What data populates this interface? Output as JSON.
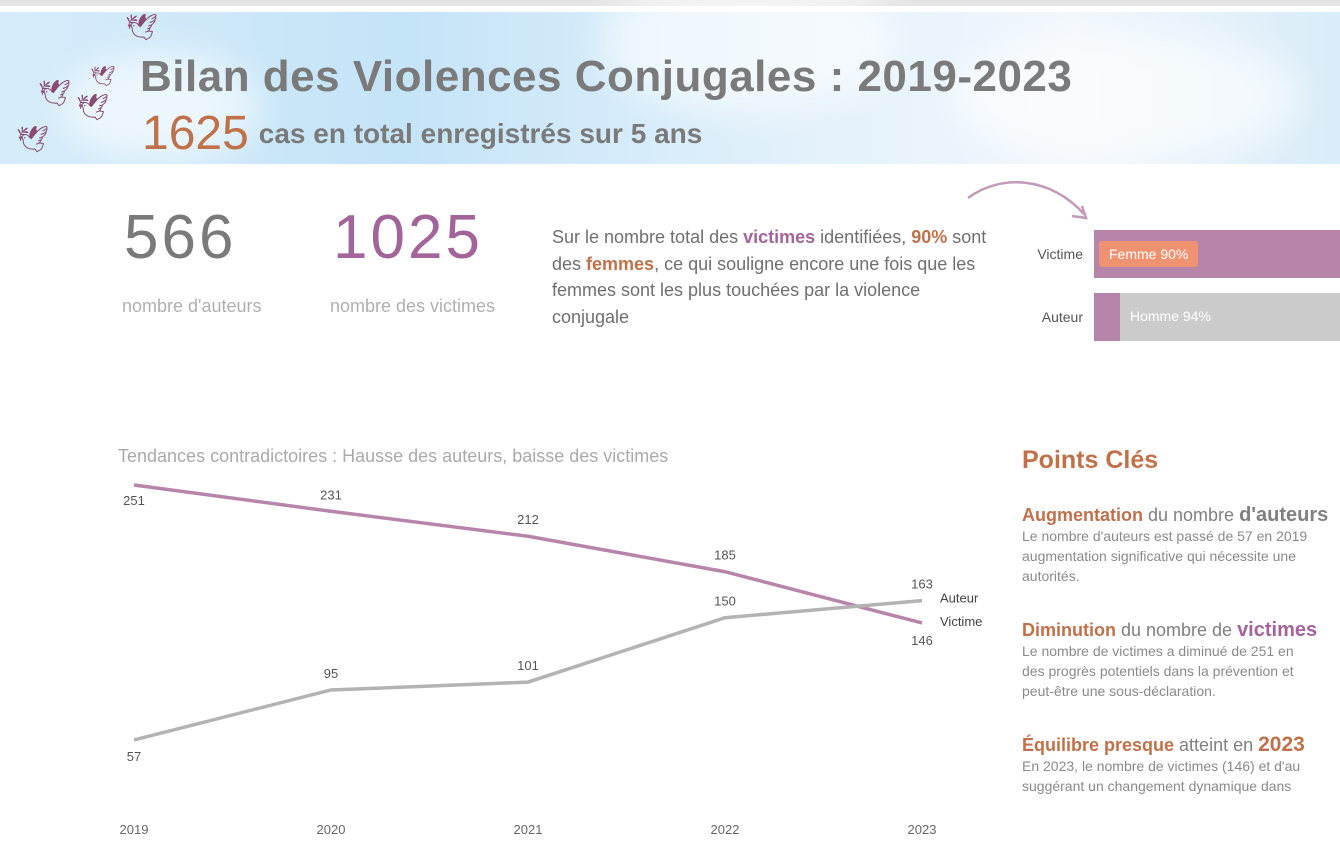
{
  "header": {
    "title": "Bilan des Violences Conjugales : 2019-2023",
    "total": "1625",
    "total_text": "cas en total enregistrés sur 5 ans"
  },
  "kpis": [
    {
      "value": "566",
      "label": "nombre d'auteurs",
      "color": "#7a7a7a"
    },
    {
      "value": "1025",
      "label": "nombre des victimes",
      "color": "#a2649a"
    }
  ],
  "summary": {
    "p1": "Sur le nombre total des ",
    "victimes": "victimes",
    "p2": " identifiées, ",
    "pct": "90%",
    "p3": " sont des ",
    "femmes": "femmes",
    "p4": ", ce qui souligne encore une fois que les femmes sont les plus touchées par la violence conjugale"
  },
  "gender_bars": [
    {
      "label": "Victime",
      "segment_label": "Femme 90%",
      "female_pct": 90
    },
    {
      "label": "Auteur",
      "segment_label": "Homme 94%",
      "male_pct": 94
    }
  ],
  "colors": {
    "victime": "#b885aa",
    "auteur": "#b3b3b3",
    "accent": "#c0714a",
    "badge": "#ef9272"
  },
  "chart_data": {
    "type": "line",
    "title": "Tendances contradictoires : Hausse des auteurs, baisse des victimes",
    "categories": [
      "2019",
      "2020",
      "2021",
      "2022",
      "2023"
    ],
    "series": [
      {
        "name": "Victime",
        "values": [
          251,
          231,
          212,
          185,
          146
        ]
      },
      {
        "name": "Auteur",
        "values": [
          57,
          95,
          101,
          150,
          163
        ]
      }
    ],
    "grid": false,
    "legend": "end-labels"
  },
  "points_cles": {
    "title": "Points Clés",
    "items": [
      {
        "h1": "Augmentation",
        "h2": " du nombre ",
        "h3": "d'auteurs",
        "text": [
          "Le nombre d'auteurs est passé de 57 en 2019",
          "augmentation significative qui nécessite une",
          "autorités."
        ]
      },
      {
        "h1": "Diminution",
        "h2": " du nombre de ",
        "h3": "victimes",
        "text": [
          "Le nombre de victimes a diminué de 251 en",
          "des progrès potentiels dans la prévention et",
          "peut-être une sous-déclaration."
        ]
      },
      {
        "h1": "Équilibre presque",
        "h2": " atteint en ",
        "h3": "2023",
        "text": [
          "En 2023, le nombre de victimes (146) et d'au",
          "suggérant un changement dynamique dans"
        ]
      }
    ]
  }
}
